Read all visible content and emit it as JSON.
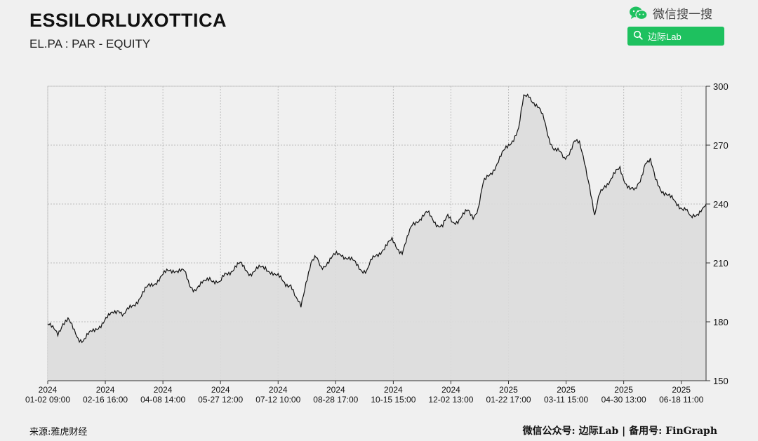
{
  "header": {
    "title": "ESSILORLUXOTTICA",
    "subtitle": "EL.PA : PAR - EQUITY"
  },
  "brand": {
    "icon": "wechat-icon",
    "label": "微信搜一搜",
    "search_icon": "search-icon",
    "search_label": "边际Lab",
    "accent_color": "#1ec15f"
  },
  "footer": {
    "source": "来源:雅虎财经",
    "credit": "微信公众号: 边际Lab | 备用号: FinGraph"
  },
  "chart_data": {
    "type": "line",
    "ylim": [
      150,
      300
    ],
    "y_ticks": [
      "150",
      "180",
      "210",
      "240",
      "270",
      "300"
    ],
    "x_ticks": [
      {
        "year": "2024",
        "date": "01-02 09:00"
      },
      {
        "year": "2024",
        "date": "02-16 16:00"
      },
      {
        "year": "2024",
        "date": "04-08 14:00"
      },
      {
        "year": "2024",
        "date": "05-27 12:00"
      },
      {
        "year": "2024",
        "date": "07-12 10:00"
      },
      {
        "year": "2024",
        "date": "08-28 17:00"
      },
      {
        "year": "2024",
        "date": "10-15 15:00"
      },
      {
        "year": "2024",
        "date": "12-02 13:00"
      },
      {
        "year": "2025",
        "date": "01-22 17:00"
      },
      {
        "year": "2025",
        "date": "03-11 15:00"
      },
      {
        "year": "2025",
        "date": "04-30 13:00"
      },
      {
        "year": "2025",
        "date": "06-18 11:00"
      }
    ],
    "grid": true,
    "fill_color": "#dcdcdc",
    "line_color": "#111111",
    "series": [
      {
        "values": [
          179,
          176,
          174,
          180,
          181,
          176,
          172,
          171,
          173,
          175,
          178,
          180,
          182,
          185,
          187,
          183,
          186,
          189,
          192,
          195,
          198,
          200,
          202,
          204,
          206,
          207,
          206,
          205,
          199,
          197,
          198,
          200,
          203,
          201,
          199,
          204,
          206,
          208,
          209,
          207,
          205,
          206,
          207,
          208,
          206,
          203,
          202,
          200,
          199,
          191,
          188,
          201,
          210,
          212,
          208,
          210,
          212,
          214,
          215,
          213,
          211,
          209,
          207,
          206,
          211,
          214,
          217,
          219,
          221,
          218,
          216,
          222,
          229,
          232,
          234,
          235,
          232,
          230,
          229,
          233,
          231,
          232,
          234,
          236,
          234,
          238,
          250,
          254,
          258,
          262,
          266,
          270,
          274,
          278,
          294,
          296,
          292,
          288,
          283,
          274,
          268,
          266,
          263,
          267,
          272,
          270,
          262,
          250,
          233,
          245,
          250,
          252,
          255,
          258,
          252,
          248,
          246,
          252,
          262,
          262,
          252,
          248,
          246,
          243,
          240,
          239,
          238,
          232,
          234,
          238,
          240
        ]
      }
    ]
  }
}
